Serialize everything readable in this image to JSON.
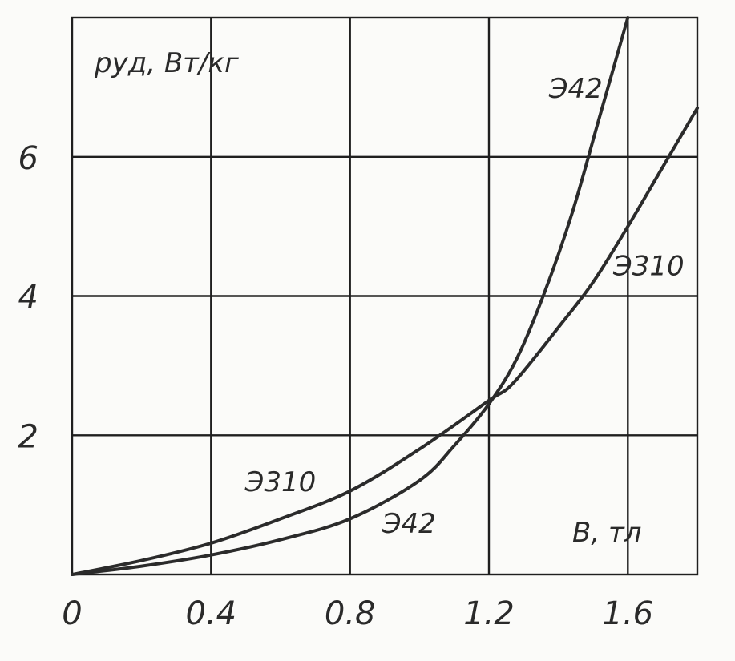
{
  "chart_data": {
    "type": "line",
    "title": "",
    "xlabel": "B, тл",
    "ylabel": "pуд, Вт/кг",
    "xlim": [
      0,
      1.8
    ],
    "ylim": [
      0,
      8
    ],
    "grid": true,
    "x_ticks": [
      {
        "value": 0,
        "label": "0"
      },
      {
        "value": 0.4,
        "label": "0.4"
      },
      {
        "value": 0.8,
        "label": "0.8"
      },
      {
        "value": 1.2,
        "label": "1.2"
      },
      {
        "value": 1.6,
        "label": "1.6"
      }
    ],
    "y_ticks": [
      {
        "value": 2,
        "label": "2"
      },
      {
        "value": 4,
        "label": "4"
      },
      {
        "value": 6,
        "label": "6"
      }
    ],
    "series": [
      {
        "name": "Э42",
        "labels": [
          {
            "text": "Э42",
            "x": 1.45,
            "y": 6.85
          },
          {
            "text": "Э42",
            "x": 0.97,
            "y": 0.6
          }
        ],
        "x": [
          0,
          0.2,
          0.4,
          0.6,
          0.8,
          1.0,
          1.1,
          1.2,
          1.28,
          1.36,
          1.44,
          1.52,
          1.6
        ],
        "y": [
          0,
          0.12,
          0.28,
          0.5,
          0.8,
          1.35,
          1.85,
          2.45,
          3.1,
          4.05,
          5.2,
          6.6,
          8.0
        ]
      },
      {
        "name": "Э310",
        "labels": [
          {
            "text": "Э310",
            "x": 0.6,
            "y": 1.2
          },
          {
            "text": "Э310",
            "x": 1.66,
            "y": 4.3
          }
        ],
        "x": [
          0,
          0.2,
          0.4,
          0.6,
          0.8,
          1.0,
          1.2,
          1.27,
          1.4,
          1.5,
          1.6,
          1.7,
          1.8
        ],
        "y": [
          0,
          0.2,
          0.45,
          0.8,
          1.2,
          1.8,
          2.5,
          2.75,
          3.55,
          4.2,
          5.0,
          5.85,
          6.7
        ]
      }
    ]
  }
}
